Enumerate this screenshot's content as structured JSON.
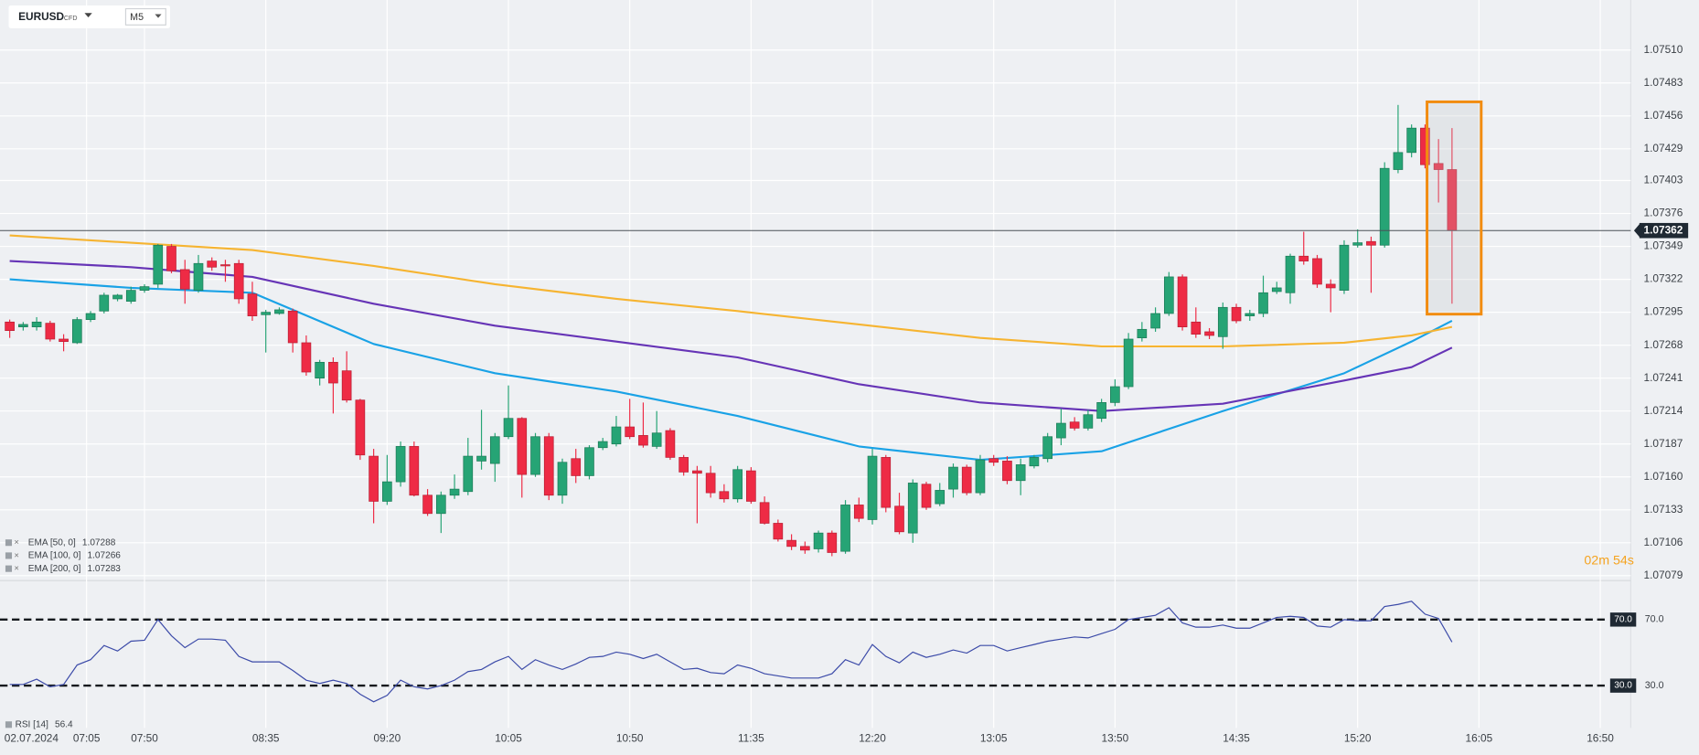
{
  "toolbar": {
    "symbol": "EURUSD",
    "tag": "CFD",
    "timeframe": "M5"
  },
  "countdown": "02m 54s",
  "chart_data": [
    {
      "type": "candlestick",
      "date": "02.07.2024",
      "xlim": [
        -0.72,
        120.26
      ],
      "ylim": [
        1.07075,
        1.07551
      ],
      "xticks": [
        {
          "value": 5.7,
          "label": "07:05"
        },
        {
          "value": 10,
          "label": "07:50"
        },
        {
          "value": 19,
          "label": "08:35"
        },
        {
          "value": 28,
          "label": "09:20"
        },
        {
          "value": 37,
          "label": "10:05"
        },
        {
          "value": 46,
          "label": "10:50"
        },
        {
          "value": 55,
          "label": "11:35"
        },
        {
          "value": 64,
          "label": "12:20"
        },
        {
          "value": 73,
          "label": "13:05"
        },
        {
          "value": 82,
          "label": "13:50"
        },
        {
          "value": 91,
          "label": "14:35"
        },
        {
          "value": 100,
          "label": "15:20"
        },
        {
          "value": 109,
          "label": "16:05"
        },
        {
          "value": 118,
          "label": "16:50"
        }
      ],
      "yticks": [
        {
          "value": 1.0751,
          "label": "1.07510"
        },
        1.07483,
        1.07456,
        1.07429,
        1.07403,
        1.07376,
        1.07349,
        1.07322,
        1.07295,
        1.07268,
        1.07241,
        1.07214,
        1.07187,
        {
          "value": 1.0716,
          "label": "1.07160"
        },
        1.07133,
        1.07106,
        1.07079
      ],
      "grid": true,
      "up_color": "#26a475",
      "down_color": "#ee2b45",
      "open": [
        1.07287,
        1.07283,
        1.07283,
        1.07286,
        1.07273,
        1.0727,
        1.07289,
        1.07296,
        1.07306,
        1.07304,
        1.07313,
        1.07318,
        1.07349,
        1.0733,
        1.07313,
        1.07337,
        1.07334,
        1.07335,
        1.0731,
        1.07293,
        1.07294,
        1.07296,
        1.0727,
        1.07241,
        1.07254,
        1.07247,
        1.07223,
        1.07177,
        1.0714,
        1.07156,
        1.07185,
        1.07145,
        1.0713,
        1.07145,
        1.07148,
        1.07173,
        1.07171,
        1.07193,
        1.07208,
        1.07162,
        1.07193,
        1.07145,
        1.07175,
        1.07161,
        1.07184,
        1.07187,
        1.07201,
        1.07194,
        1.07185,
        1.07198,
        1.07176,
        1.07165,
        1.07163,
        1.07148,
        1.07142,
        1.07165,
        1.07139,
        1.07122,
        1.07108,
        1.07103,
        1.07101,
        1.07114,
        1.07099,
        1.07137,
        1.07125,
        1.07176,
        1.07136,
        1.07114,
        1.07154,
        1.07138,
        1.0715,
        1.07168,
        1.07147,
        1.07175,
        1.07173,
        1.07157,
        1.07169,
        1.07175,
        1.07192,
        1.07205,
        1.072,
        1.07208,
        1.07221,
        1.07234,
        1.07274,
        1.07282,
        1.07294,
        1.07324,
        1.07287,
        1.07279,
        1.07275,
        1.07299,
        1.07292,
        1.07294,
        1.07312,
        1.07311,
        1.07341,
        1.07339,
        1.07318,
        1.07313,
        1.0735,
        1.07353,
        1.0735,
        1.07412,
        1.07426,
        1.07446,
        1.07417,
        1.07412
      ],
      "high": [
        1.07289,
        1.07287,
        1.07291,
        1.07288,
        1.07277,
        1.07291,
        1.07296,
        1.07311,
        1.0731,
        1.07316,
        1.07318,
        1.07351,
        1.07351,
        1.07338,
        1.07342,
        1.0734,
        1.07338,
        1.07338,
        1.0732,
        1.07297,
        1.07299,
        1.07298,
        1.07276,
        1.07256,
        1.07258,
        1.07263,
        1.07224,
        1.07183,
        1.07178,
        1.07189,
        1.07189,
        1.0715,
        1.07148,
        1.07162,
        1.07192,
        1.07215,
        1.07196,
        1.07235,
        1.07209,
        1.07196,
        1.07196,
        1.07175,
        1.07183,
        1.07186,
        1.07192,
        1.0721,
        1.07224,
        1.07221,
        1.07214,
        1.072,
        1.07178,
        1.07169,
        1.07169,
        1.07154,
        1.07169,
        1.07168,
        1.07144,
        1.07125,
        1.07113,
        1.07107,
        1.07116,
        1.07116,
        1.07141,
        1.07143,
        1.07183,
        1.07178,
        1.07147,
        1.07158,
        1.07156,
        1.07155,
        1.07171,
        1.0717,
        1.07178,
        1.07178,
        1.07177,
        1.07175,
        1.07178,
        1.07196,
        1.07216,
        1.07209,
        1.07215,
        1.07224,
        1.0724,
        1.07278,
        1.07287,
        1.07299,
        1.07328,
        1.07326,
        1.07299,
        1.07282,
        1.07303,
        1.07302,
        1.07297,
        1.07325,
        1.0732,
        1.07343,
        1.07361,
        1.07342,
        1.07322,
        1.07354,
        1.07363,
        1.07357,
        1.07418,
        1.07465,
        1.07449,
        1.07449,
        1.07437,
        1.07446
      ],
      "low": [
        1.07274,
        1.0728,
        1.0728,
        1.07271,
        1.07263,
        1.07269,
        1.07287,
        1.07294,
        1.07304,
        1.07302,
        1.07311,
        1.07315,
        1.07327,
        1.07302,
        1.07311,
        1.07329,
        1.0732,
        1.07302,
        1.07288,
        1.07262,
        1.07293,
        1.07262,
        1.07243,
        1.07235,
        1.07212,
        1.07221,
        1.07174,
        1.07122,
        1.07137,
        1.07152,
        1.07144,
        1.07128,
        1.07114,
        1.07142,
        1.07145,
        1.07166,
        1.07156,
        1.07191,
        1.07143,
        1.0716,
        1.07141,
        1.07138,
        1.07155,
        1.07158,
        1.07182,
        1.07185,
        1.07191,
        1.07184,
        1.07183,
        1.07174,
        1.07161,
        1.07122,
        1.07143,
        1.07139,
        1.07139,
        1.07138,
        1.07121,
        1.07107,
        1.071,
        1.07097,
        1.07098,
        1.07095,
        1.07097,
        1.07123,
        1.07121,
        1.07131,
        1.07113,
        1.07106,
        1.07133,
        1.07136,
        1.07143,
        1.07145,
        1.07145,
        1.07169,
        1.07154,
        1.07145,
        1.07167,
        1.07172,
        1.07186,
        1.07198,
        1.07198,
        1.07205,
        1.07218,
        1.07232,
        1.07271,
        1.07279,
        1.07292,
        1.0728,
        1.07274,
        1.07273,
        1.07265,
        1.07286,
        1.07288,
        1.07291,
        1.0731,
        1.07302,
        1.07334,
        1.07315,
        1.07295,
        1.0731,
        1.07348,
        1.07311,
        1.07348,
        1.07409,
        1.07422,
        1.07413,
        1.07385,
        1.07302
      ],
      "close": [
        1.0728,
        1.07285,
        1.07287,
        1.07273,
        1.07271,
        1.07289,
        1.07294,
        1.07309,
        1.07309,
        1.07313,
        1.07316,
        1.0735,
        1.07329,
        1.07314,
        1.07335,
        1.07332,
        1.07333,
        1.07306,
        1.07292,
        1.07295,
        1.07297,
        1.0727,
        1.07246,
        1.07254,
        1.07237,
        1.07223,
        1.07178,
        1.0714,
        1.07156,
        1.07185,
        1.07145,
        1.0713,
        1.07145,
        1.0715,
        1.07177,
        1.07177,
        1.07193,
        1.07208,
        1.07162,
        1.07193,
        1.07145,
        1.07172,
        1.07161,
        1.07184,
        1.07189,
        1.07201,
        1.07193,
        1.07186,
        1.07196,
        1.07176,
        1.07164,
        1.07163,
        1.07147,
        1.07142,
        1.07166,
        1.0714,
        1.07122,
        1.07109,
        1.07103,
        1.071,
        1.07114,
        1.07098,
        1.07137,
        1.07126,
        1.07177,
        1.07135,
        1.07115,
        1.07155,
        1.07135,
        1.07149,
        1.07168,
        1.07147,
        1.07174,
        1.07172,
        1.07157,
        1.0717,
        1.07176,
        1.07193,
        1.07204,
        1.072,
        1.07211,
        1.07221,
        1.07234,
        1.07273,
        1.07281,
        1.07294,
        1.07324,
        1.07283,
        1.07277,
        1.07276,
        1.07299,
        1.07288,
        1.07294,
        1.07311,
        1.07315,
        1.07341,
        1.07337,
        1.07318,
        1.07315,
        1.0735,
        1.07352,
        1.0735,
        1.07413,
        1.07426,
        1.07446,
        1.07416,
        1.07412,
        1.07362
      ],
      "overlays": [
        {
          "name": "EMA [50, 0]",
          "color": "#19a2e6",
          "x": [
            0,
            9,
            18,
            27,
            36,
            45,
            54,
            63,
            72,
            81,
            90,
            99,
            104,
            107
          ],
          "values": [
            1.07322,
            1.07315,
            1.07311,
            1.07269,
            1.07245,
            1.0723,
            1.0721,
            1.07185,
            1.07174,
            1.07181,
            1.07214,
            1.07245,
            1.07271,
            1.07288
          ]
        },
        {
          "name": "EMA [100, 0]",
          "color": "#6634b6",
          "x": [
            0,
            9,
            18,
            27,
            36,
            45,
            54,
            63,
            72,
            81,
            90,
            99,
            104,
            107
          ],
          "values": [
            1.07337,
            1.07332,
            1.07324,
            1.07302,
            1.07284,
            1.07271,
            1.07258,
            1.07236,
            1.07221,
            1.07214,
            1.0722,
            1.07239,
            1.0725,
            1.07266
          ]
        },
        {
          "name": "EMA [200, 0]",
          "color": "#f6b431",
          "x": [
            0,
            9,
            18,
            27,
            36,
            45,
            54,
            63,
            72,
            81,
            90,
            99,
            104,
            107
          ],
          "values": [
            1.07358,
            1.07352,
            1.07346,
            1.07333,
            1.07318,
            1.07306,
            1.07296,
            1.07285,
            1.07274,
            1.07267,
            1.07267,
            1.0727,
            1.07276,
            1.07283
          ]
        }
      ]
    },
    {
      "type": "line",
      "ylim": [
        9,
        91
      ],
      "yticks": [
        {
          "value": 70,
          "label": "70.0"
        },
        {
          "value": 30,
          "label": "30.0"
        }
      ],
      "series": [
        {
          "name": "RSI [14]",
          "color": "#3b4aa8",
          "values": [
            30.7,
            30.7,
            33.9,
            29.3,
            30.7,
            42.5,
            45.7,
            54.3,
            51.0,
            56.9,
            57.5,
            70.0,
            60.2,
            53.0,
            58.2,
            58.2,
            57.5,
            47.7,
            44.4,
            44.4,
            44.4,
            39.2,
            33.3,
            31.3,
            33.3,
            31.3,
            24.8,
            20.2,
            24.1,
            33.3,
            29.3,
            28.0,
            30.0,
            33.3,
            38.5,
            39.8,
            44.4,
            47.7,
            39.8,
            45.7,
            42.5,
            39.8,
            43.1,
            47.1,
            47.7,
            50.3,
            49.0,
            46.4,
            49.0,
            44.4,
            39.8,
            40.5,
            37.9,
            37.2,
            42.5,
            40.5,
            37.2,
            35.9,
            34.6,
            34.6,
            34.6,
            37.2,
            45.7,
            42.5,
            54.9,
            47.7,
            43.8,
            50.3,
            47.1,
            49.0,
            51.6,
            49.7,
            54.3,
            54.3,
            51.0,
            53.0,
            54.9,
            56.9,
            58.2,
            59.5,
            58.9,
            61.5,
            64.1,
            70.0,
            71.3,
            72.6,
            77.2,
            68.0,
            65.4,
            65.4,
            66.7,
            64.8,
            64.8,
            68.0,
            71.3,
            72.0,
            71.3,
            66.1,
            65.4,
            70.0,
            69.3,
            69.3,
            77.9,
            79.2,
            81.1,
            73.3,
            70.7,
            56.4
          ]
        }
      ]
    }
  ]
}
